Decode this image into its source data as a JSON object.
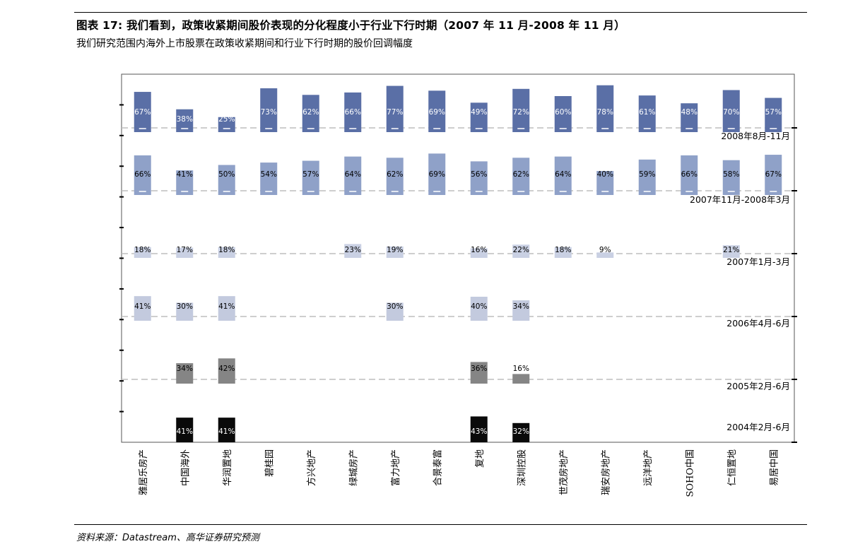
{
  "header": {
    "title": "图表 17:   我们看到，政策收紧期间股价表现的分化程度小于行业下行时期（2007 年 11 月-2008 年 11 月）",
    "subtitle": "我们研究范围内海外上市股票在政策收紧期间和行业下行时期的股价回调幅度"
  },
  "footer": {
    "source": "资料来源：Datastream、高华证券研究预测"
  },
  "chart_data": {
    "type": "bar",
    "categories": [
      "雅居乐房产",
      "中国海外",
      "华润置地",
      "碧桂园",
      "方兴地产",
      "绿城房产",
      "富力地产",
      "合景泰富",
      "复地",
      "深圳控股",
      "世茂房地产",
      "瑞安房地产",
      "远洋地产",
      "SOHO中国",
      "仁恒置地",
      "易居中国"
    ],
    "value_unit": "%",
    "series": [
      {
        "name": "2008年8月-11月",
        "color": "#5a6fa6",
        "label_color": "#ffffff",
        "values": [
          67,
          38,
          25,
          73,
          62,
          66,
          77,
          69,
          49,
          72,
          60,
          78,
          61,
          48,
          70,
          57
        ]
      },
      {
        "name": "2007年11月-2008年3月",
        "color": "#8fa1c8",
        "label_color": "#000000",
        "values": [
          66,
          41,
          50,
          54,
          57,
          64,
          62,
          69,
          56,
          62,
          64,
          40,
          59,
          66,
          58,
          67
        ]
      },
      {
        "name": "2007年1月-3月",
        "color": "#c9d0e3",
        "label_color": "#000000",
        "values": [
          18,
          17,
          18,
          null,
          null,
          23,
          19,
          null,
          16,
          22,
          18,
          9,
          null,
          null,
          21,
          null
        ]
      },
      {
        "name": "2006年4月-6月",
        "color": "#c3cade",
        "label_color": "#000000",
        "values": [
          41,
          30,
          41,
          null,
          null,
          null,
          30,
          null,
          40,
          34,
          null,
          null,
          null,
          null,
          null,
          null
        ]
      },
      {
        "name": "2005年2月-6月",
        "color": "#858585",
        "label_color": "#000000",
        "values": [
          null,
          34,
          42,
          null,
          null,
          null,
          null,
          null,
          36,
          16,
          null,
          null,
          null,
          null,
          null,
          null
        ]
      },
      {
        "name": "2004年2月-6月",
        "color": "#0a0a0a",
        "label_color": "#ffffff",
        "values": [
          null,
          41,
          41,
          null,
          null,
          null,
          null,
          null,
          43,
          32,
          null,
          null,
          null,
          null,
          null,
          null
        ]
      }
    ]
  }
}
